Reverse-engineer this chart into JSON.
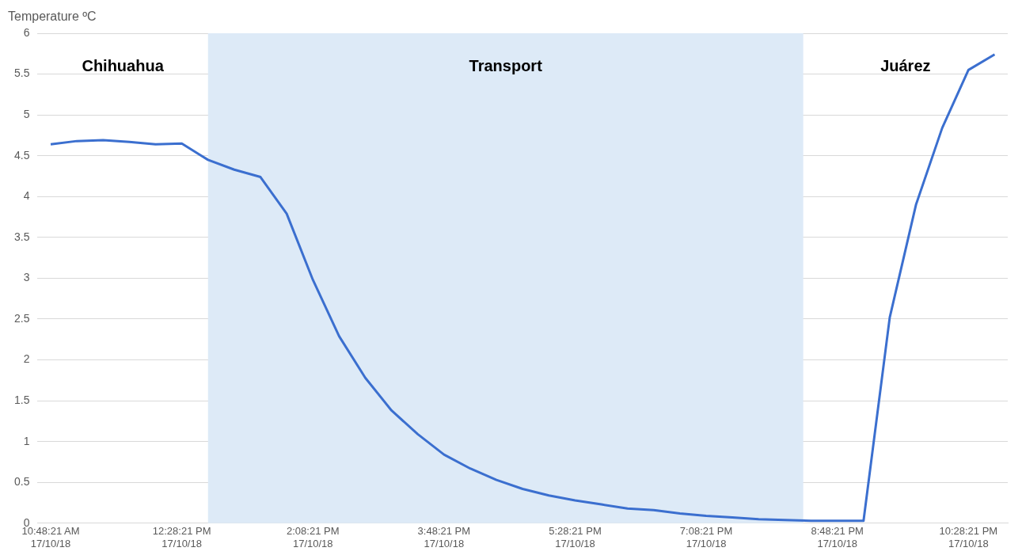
{
  "chart_data": {
    "type": "line",
    "ylabel": "Temperature ºC",
    "categories": [
      "10:48:21 AM 17/10/18",
      null,
      null,
      null,
      null,
      "12:28:21 PM 17/10/18",
      null,
      null,
      null,
      null,
      "2:08:21 PM 17/10/18",
      null,
      null,
      null,
      null,
      "3:48:21 PM 17/10/18",
      null,
      null,
      null,
      null,
      "5:28:21 PM 17/10/18",
      null,
      null,
      null,
      null,
      "7:08:21 PM 17/10/18",
      null,
      null,
      null,
      null,
      "8:48:21 PM 17/10/18",
      null,
      null,
      null,
      null,
      "10:28:21 PM 17/10/18",
      null
    ],
    "series": [
      {
        "color": "#3b6fcf",
        "values": [
          4.64,
          4.68,
          4.69,
          4.67,
          4.64,
          4.65,
          4.45,
          4.33,
          4.24,
          3.79,
          2.98,
          2.29,
          1.78,
          1.38,
          1.09,
          0.84,
          0.67,
          0.53,
          0.42,
          0.34,
          0.28,
          0.23,
          0.18,
          0.16,
          0.12,
          0.09,
          0.07,
          0.05,
          0.04,
          0.03,
          0.03,
          0.03,
          2.52,
          3.9,
          4.84,
          5.55,
          5.74
        ]
      }
    ],
    "ylim": [
      0,
      6
    ],
    "yticks": [
      0,
      0.5,
      1,
      1.5,
      2,
      2.5,
      3,
      3.5,
      4,
      4.5,
      5,
      5.5,
      6
    ],
    "annotations": [
      "Chihuahua",
      "Transport",
      "Juárez"
    ],
    "grid": "y",
    "legend": false,
    "marker": "none",
    "line_style": "solid"
  }
}
